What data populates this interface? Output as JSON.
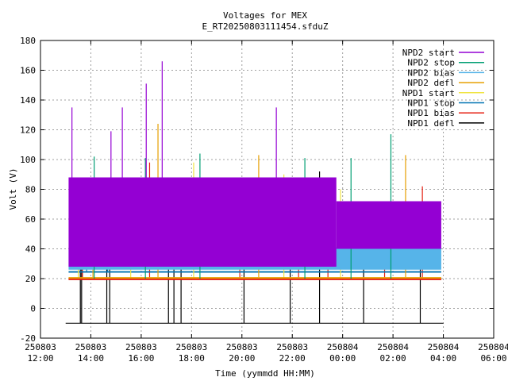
{
  "chart_data": {
    "type": "line",
    "title": "Voltages for MEX",
    "subtitle": "E_RT20250803111454.sfduZ",
    "xlabel": "Time (yymmdd HH:MM)",
    "ylabel": "Volt (V)",
    "ylim": [
      -20,
      180
    ],
    "yticks": [
      -20,
      0,
      20,
      40,
      60,
      80,
      100,
      120,
      140,
      160,
      180
    ],
    "xlim_hours": [
      12,
      30
    ],
    "xticks": [
      {
        "date": "250803",
        "time": "12:00"
      },
      {
        "date": "250803",
        "time": "14:00"
      },
      {
        "date": "250803",
        "time": "16:00"
      },
      {
        "date": "250803",
        "time": "18:00"
      },
      {
        "date": "250803",
        "time": "20:00"
      },
      {
        "date": "250803",
        "time": "22:00"
      },
      {
        "date": "250804",
        "time": "00:00"
      },
      {
        "date": "250804",
        "time": "02:00"
      },
      {
        "date": "250804",
        "time": "04:00"
      },
      {
        "date": "250804",
        "time": "06:00"
      }
    ],
    "grid": true,
    "legend_position": "top-right",
    "series": [
      {
        "name": "NPD2 start",
        "color": "#9400d3",
        "bands": [
          {
            "x0": "250803 13:07",
            "x1": "250803 23:45",
            "ymin": 28,
            "ymax": 88
          },
          {
            "x0": "250803 23:45",
            "x1": "250804 03:55",
            "ymin": 40,
            "ymax": 72
          }
        ],
        "spikes": [
          {
            "x": "250803 13:15",
            "y": 135
          },
          {
            "x": "250803 14:48",
            "y": 119
          },
          {
            "x": "250803 15:15",
            "y": 135
          },
          {
            "x": "250803 16:12",
            "y": 151
          },
          {
            "x": "250803 16:50",
            "y": 166
          },
          {
            "x": "250803 21:22",
            "y": 135
          }
        ]
      },
      {
        "name": "NPD2 stop",
        "color": "#009e73",
        "spikes": [
          {
            "x": "250803 14:08",
            "y": 102
          },
          {
            "x": "250803 16:10",
            "y": 101
          },
          {
            "x": "250803 18:20",
            "y": 104
          },
          {
            "x": "250803 22:30",
            "y": 101
          },
          {
            "x": "250804 00:20",
            "y": 101
          },
          {
            "x": "250804 01:55",
            "y": 117
          }
        ]
      },
      {
        "name": "NPD2 bias",
        "color": "#56b4e9",
        "bands": [
          {
            "x0": "250803 13:07",
            "x1": "250804 03:55",
            "ymin": 26,
            "ymax": 41
          }
        ]
      },
      {
        "name": "NPD2 defl",
        "color": "#e69f00",
        "bands": [
          {
            "x0": "250803 13:07",
            "x1": "250804 03:55",
            "ymin": 20,
            "ymax": 21
          }
        ],
        "spikes": [
          {
            "x": "250803 16:40",
            "y": 124
          },
          {
            "x": "250803 20:40",
            "y": 103
          },
          {
            "x": "250804 02:30",
            "y": 103
          },
          {
            "x": "250803 14:05",
            "y": 62
          }
        ]
      },
      {
        "name": "NPD1 start",
        "color": "#f0e442",
        "spikes": [
          {
            "x": "250803 13:30",
            "y": 76
          },
          {
            "x": "250803 15:35",
            "y": 70
          },
          {
            "x": "250803 18:05",
            "y": 98
          },
          {
            "x": "250803 21:40",
            "y": 90
          },
          {
            "x": "250803 23:55",
            "y": 80
          }
        ]
      },
      {
        "name": "NPD1 stop",
        "color": "#0072b2",
        "bands": [
          {
            "x0": "250803 13:07",
            "x1": "250804 03:55",
            "ymin": 24,
            "ymax": 25
          },
          {
            "x0": "250804 01:00",
            "x1": "250804 02:55",
            "ymin": 38,
            "ymax": 57
          }
        ],
        "spikes": [
          {
            "x": "250803 14:40",
            "y": 87
          },
          {
            "x": "250803 13:50",
            "y": 66
          }
        ]
      },
      {
        "name": "NPD1 bias",
        "color": "#e51e10",
        "bands": [
          {
            "x0": "250803 13:07",
            "x1": "250804 03:55",
            "ymin": 19,
            "ymax": 20
          }
        ],
        "spikes": [
          {
            "x": "250803 13:40",
            "y": 79
          },
          {
            "x": "250803 16:20",
            "y": 98
          },
          {
            "x": "250803 19:55",
            "y": 79
          },
          {
            "x": "250803 22:15",
            "y": 60
          },
          {
            "x": "250803 23:25",
            "y": 55
          },
          {
            "x": "250804 01:40",
            "y": 63
          },
          {
            "x": "250804 03:10",
            "y": 82
          }
        ]
      },
      {
        "name": "NPD1 defl",
        "color": "#000000",
        "baseline": {
          "x0": "250803 13:00",
          "x1": "250804 04:00",
          "y": -10
        },
        "spikes": [
          {
            "x": "250803 13:35",
            "y": -10,
            "y2": 52
          },
          {
            "x": "250803 13:38",
            "y": -10,
            "y2": 53
          },
          {
            "x": "250803 14:38",
            "y": -10,
            "y2": 52
          },
          {
            "x": "250803 14:45",
            "y": -10,
            "y2": 53
          },
          {
            "x": "250803 17:05",
            "y": -10,
            "y2": 70
          },
          {
            "x": "250803 17:18",
            "y": -10,
            "y2": 55
          },
          {
            "x": "250803 17:35",
            "y": -10,
            "y2": 52
          },
          {
            "x": "250803 20:05",
            "y": -10,
            "y2": 69
          },
          {
            "x": "250803 21:55",
            "y": -10,
            "y2": 63
          },
          {
            "x": "250803 23:05",
            "y": -10,
            "y2": 92
          },
          {
            "x": "250804 00:50",
            "y": -10,
            "y2": 53
          },
          {
            "x": "250804 03:05",
            "y": -10,
            "y2": 55
          }
        ]
      }
    ]
  }
}
